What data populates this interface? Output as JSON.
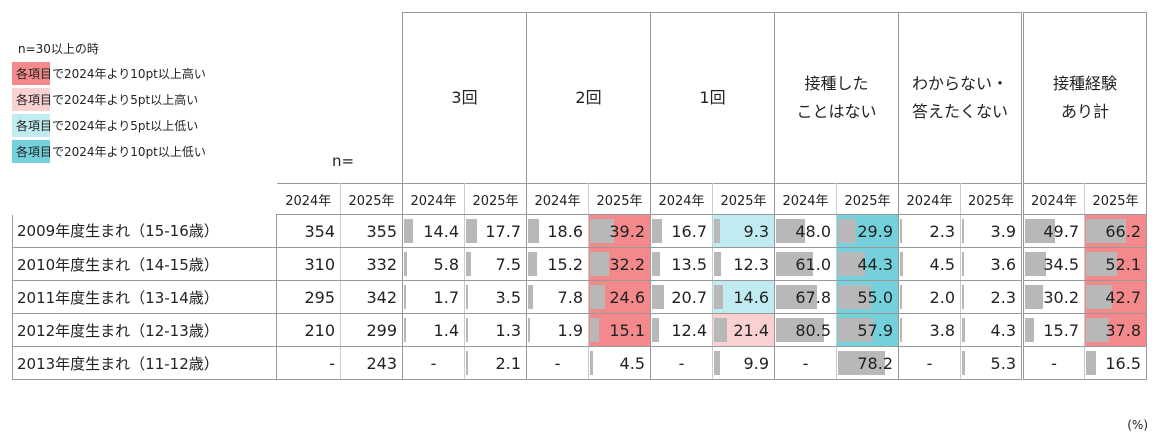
{
  "legend": {
    "condition": "n=30以上の時",
    "items": [
      {
        "label": "各項目で2024年より10pt以上高い",
        "color": "#f4898b"
      },
      {
        "label": "各項目で2024年より5pt以上高い",
        "color": "#f9d1d1"
      },
      {
        "label": "各項目で2024年より5pt以上低い",
        "color": "#c0ecf1"
      },
      {
        "label": "各項目で2024年より10pt以上低い",
        "color": "#74d1dc"
      }
    ]
  },
  "n_header": "n=",
  "unit": "(%)",
  "chart_data": {
    "type": "table",
    "groups": [
      {
        "label1": "3回",
        "label2": ""
      },
      {
        "label1": "2回",
        "label2": ""
      },
      {
        "label1": "1回",
        "label2": ""
      },
      {
        "label1": "接種した",
        "label2": "ことはない"
      },
      {
        "label1": "わからない・",
        "label2": "答えたくない"
      },
      {
        "label1": "接種経験",
        "label2": "あり計"
      }
    ],
    "years": [
      "2024年",
      "2025年"
    ],
    "rows": [
      {
        "label": "2009年度生まれ（15-16歳）",
        "n": [
          "354",
          "355"
        ],
        "values": [
          [
            "14.4",
            "17.7"
          ],
          [
            "18.6",
            "39.2"
          ],
          [
            "16.7",
            "9.3"
          ],
          [
            "48.0",
            "29.9"
          ],
          [
            "2.3",
            "3.9"
          ],
          [
            "49.7",
            "66.2"
          ]
        ],
        "highlight": [
          [
            null,
            null
          ],
          [
            null,
            "#f4898b"
          ],
          [
            null,
            "#c0ecf1"
          ],
          [
            null,
            "#74d1dc"
          ],
          [
            null,
            null
          ],
          [
            null,
            "#f4898b"
          ]
        ]
      },
      {
        "label": "2010年度生まれ（14-15歳）",
        "n": [
          "310",
          "332"
        ],
        "values": [
          [
            "5.8",
            "7.5"
          ],
          [
            "15.2",
            "32.2"
          ],
          [
            "13.5",
            "12.3"
          ],
          [
            "61.0",
            "44.3"
          ],
          [
            "4.5",
            "3.6"
          ],
          [
            "34.5",
            "52.1"
          ]
        ],
        "highlight": [
          [
            null,
            null
          ],
          [
            null,
            "#f4898b"
          ],
          [
            null,
            null
          ],
          [
            null,
            "#74d1dc"
          ],
          [
            null,
            null
          ],
          [
            null,
            "#f4898b"
          ]
        ]
      },
      {
        "label": "2011年度生まれ（13-14歳）",
        "n": [
          "295",
          "342"
        ],
        "values": [
          [
            "1.7",
            "3.5"
          ],
          [
            "7.8",
            "24.6"
          ],
          [
            "20.7",
            "14.6"
          ],
          [
            "67.8",
            "55.0"
          ],
          [
            "2.0",
            "2.3"
          ],
          [
            "30.2",
            "42.7"
          ]
        ],
        "highlight": [
          [
            null,
            null
          ],
          [
            null,
            "#f4898b"
          ],
          [
            null,
            "#c0ecf1"
          ],
          [
            null,
            "#74d1dc"
          ],
          [
            null,
            null
          ],
          [
            null,
            "#f4898b"
          ]
        ]
      },
      {
        "label": "2012年度生まれ（12-13歳）",
        "n": [
          "210",
          "299"
        ],
        "values": [
          [
            "1.4",
            "1.3"
          ],
          [
            "1.9",
            "15.1"
          ],
          [
            "12.4",
            "21.4"
          ],
          [
            "80.5",
            "57.9"
          ],
          [
            "3.8",
            "4.3"
          ],
          [
            "15.7",
            "37.8"
          ]
        ],
        "highlight": [
          [
            null,
            null
          ],
          [
            null,
            "#f4898b"
          ],
          [
            null,
            "#f9d1d1"
          ],
          [
            null,
            "#74d1dc"
          ],
          [
            null,
            null
          ],
          [
            null,
            "#f4898b"
          ]
        ]
      },
      {
        "label": "2013年度生まれ（11-12歳）",
        "n": [
          "-",
          "243"
        ],
        "values": [
          [
            "-",
            "2.1"
          ],
          [
            "-",
            "4.5"
          ],
          [
            "-",
            "9.9"
          ],
          [
            "-",
            "78.2"
          ],
          [
            "-",
            "5.3"
          ],
          [
            "-",
            "16.5"
          ]
        ],
        "highlight": [
          [
            null,
            null
          ],
          [
            null,
            null
          ],
          [
            null,
            null
          ],
          [
            null,
            null
          ],
          [
            null,
            null
          ],
          [
            null,
            null
          ]
        ]
      }
    ],
    "bar_max": 100
  }
}
